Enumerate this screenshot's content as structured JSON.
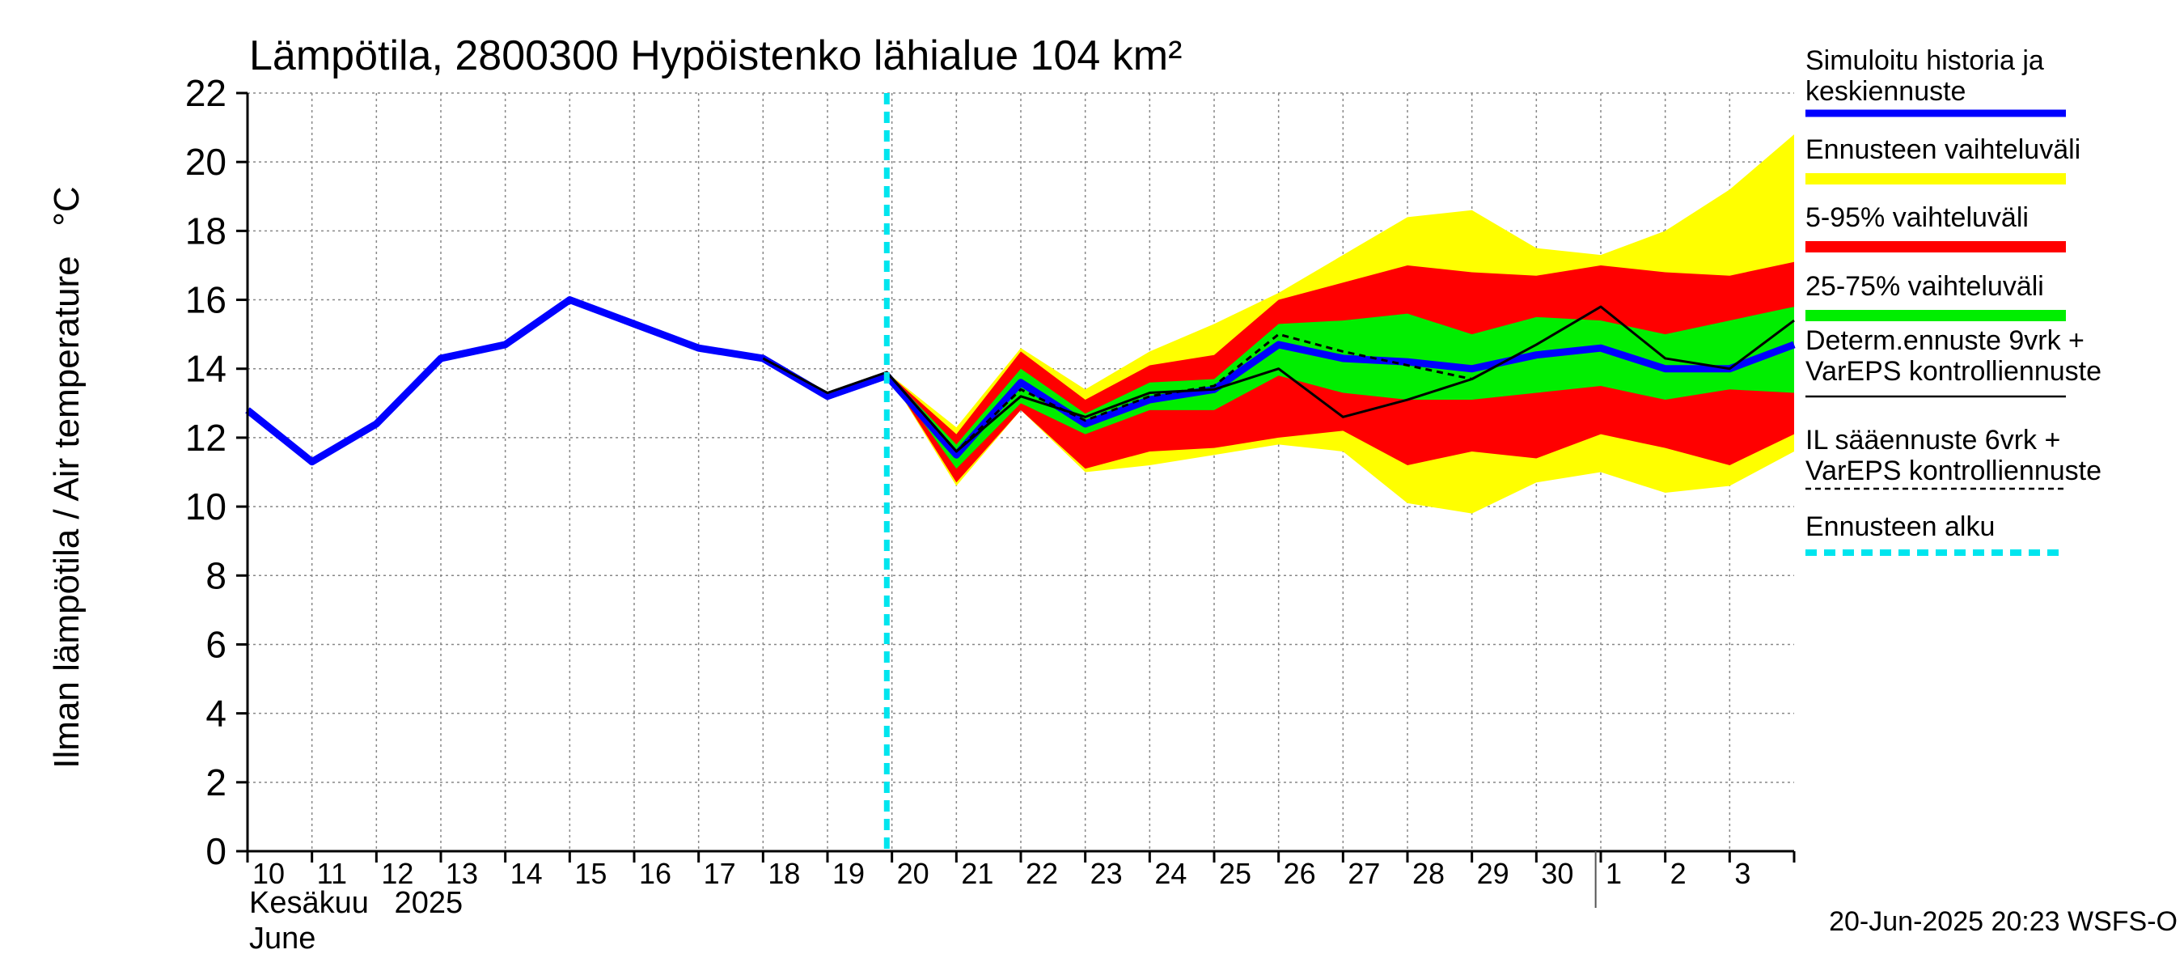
{
  "chart_data": {
    "type": "area",
    "title": "Lämpötila, 2800300 Hypöistenko lähialue 104 km²",
    "ylabel": "Ilman lämpötila / Air temperature   °C",
    "xlabel_fi": "Kesäkuu   2025",
    "xlabel_en": "June",
    "ylim": [
      0,
      22
    ],
    "yticks": [
      "0",
      "2",
      "4",
      "6",
      "8",
      "10",
      "12",
      "14",
      "16",
      "18",
      "20",
      "22"
    ],
    "x_range_days": [
      10,
      34
    ],
    "xtick_labels": [
      "10",
      "11",
      "12",
      "13",
      "14",
      "15",
      "16",
      "17",
      "18",
      "19",
      "20",
      "21",
      "22",
      "23",
      "24",
      "25",
      "26",
      "27",
      "28",
      "29",
      "30",
      "1",
      "2",
      "3"
    ],
    "month_boundary_day": 30.92,
    "forecast_start_day": 19.92,
    "grid": true,
    "legend_placement": "right",
    "timestamp": "20-Jun-2025 20:23 WSFS-O",
    "colors": {
      "history": "#0000ff",
      "range_total": "#ffff00",
      "range_5_95": "#ff0000",
      "range_25_75": "#00ee00",
      "deterministic": "#000000",
      "il_forecast": "#000000",
      "forecast_start": "#00e5ee",
      "grid": "#888888"
    },
    "bands_x": [
      19.92,
      21,
      22,
      23,
      24,
      25,
      26,
      27,
      28,
      29,
      30,
      31,
      32,
      33,
      34
    ],
    "band_total_high": [
      13.9,
      12.3,
      14.6,
      13.4,
      14.5,
      15.3,
      16.2,
      17.3,
      18.4,
      18.6,
      17.5,
      17.3,
      18.0,
      19.2,
      20.8
    ],
    "band_5_95_high": [
      13.9,
      12.1,
      14.5,
      13.1,
      14.1,
      14.4,
      16.0,
      16.5,
      17.0,
      16.8,
      16.7,
      17.0,
      16.8,
      16.7,
      17.1
    ],
    "band_25_75_high": [
      13.9,
      11.8,
      14.0,
      12.7,
      13.6,
      13.7,
      15.3,
      15.4,
      15.6,
      15.0,
      15.5,
      15.4,
      15.0,
      15.4,
      15.8
    ],
    "band_25_75_low": [
      13.9,
      11.1,
      13.0,
      12.1,
      12.8,
      12.8,
      13.8,
      13.3,
      13.1,
      13.1,
      13.3,
      13.5,
      13.1,
      13.4,
      13.3
    ],
    "band_5_95_low": [
      13.9,
      10.7,
      12.8,
      11.1,
      11.6,
      11.7,
      12.0,
      12.2,
      11.2,
      11.6,
      11.4,
      12.1,
      11.7,
      11.2,
      12.1
    ],
    "band_total_low": [
      13.9,
      10.6,
      12.8,
      11.0,
      11.2,
      11.5,
      11.8,
      11.6,
      10.1,
      9.8,
      10.7,
      11.0,
      10.4,
      10.6,
      11.6
    ],
    "series": [
      {
        "name": "Simuloitu historia ja keskiennuste",
        "x": [
          10,
          11,
          12,
          13,
          14,
          15,
          16,
          17,
          18,
          19,
          19.92,
          21,
          22,
          23,
          24,
          25,
          26,
          27,
          28,
          29,
          30,
          31,
          32,
          33,
          34
        ],
        "values": [
          12.8,
          11.3,
          12.4,
          14.3,
          14.7,
          16.0,
          15.3,
          14.6,
          14.3,
          13.2,
          13.8,
          11.5,
          13.6,
          12.4,
          13.1,
          13.4,
          14.7,
          14.3,
          14.2,
          14.0,
          14.4,
          14.6,
          14.0,
          14.0,
          14.7
        ]
      },
      {
        "name": "Determ.ennuste 9vrk + VarEPS kontrolliennuste",
        "x": [
          18,
          19,
          19.92,
          21,
          22,
          23,
          24,
          25,
          26,
          27,
          28,
          29,
          30,
          31,
          32,
          33,
          34
        ],
        "values": [
          14.3,
          13.3,
          13.9,
          11.6,
          13.2,
          12.6,
          13.3,
          13.4,
          14.0,
          12.6,
          13.1,
          13.7,
          14.7,
          15.8,
          14.3,
          14.0,
          15.4
        ]
      },
      {
        "name": "IL sääennuste 6vrk + VarEPS kontrolliennuste",
        "x": [
          19.92,
          21,
          22,
          23,
          24,
          25,
          26,
          27,
          28,
          29
        ],
        "values": [
          13.9,
          11.6,
          13.4,
          12.5,
          13.2,
          13.5,
          15.0,
          14.5,
          14.1,
          13.7
        ]
      }
    ],
    "legend": [
      {
        "lines": [
          "Simuloitu historia ja",
          "keskiennuste"
        ],
        "color": "#0000ff",
        "style": "thick"
      },
      {
        "lines": [
          "Ennusteen vaihteluväli"
        ],
        "color": "#ffff00",
        "style": "band"
      },
      {
        "lines": [
          "5-95% vaihteluväli"
        ],
        "color": "#ff0000",
        "style": "band"
      },
      {
        "lines": [
          "25-75% vaihteluväli"
        ],
        "color": "#00ee00",
        "style": "band"
      },
      {
        "lines": [
          "Determ.ennuste 9vrk +",
          "VarEPS kontrolliennuste"
        ],
        "color": "#000000",
        "style": "thin"
      },
      {
        "lines": [
          "IL sääennuste 6vrk  +",
          "  VarEPS kontrolliennuste"
        ],
        "color": "#000000",
        "style": "dashed"
      },
      {
        "lines": [
          "Ennusteen alku"
        ],
        "color": "#00e5ee",
        "style": "dotted"
      }
    ]
  }
}
